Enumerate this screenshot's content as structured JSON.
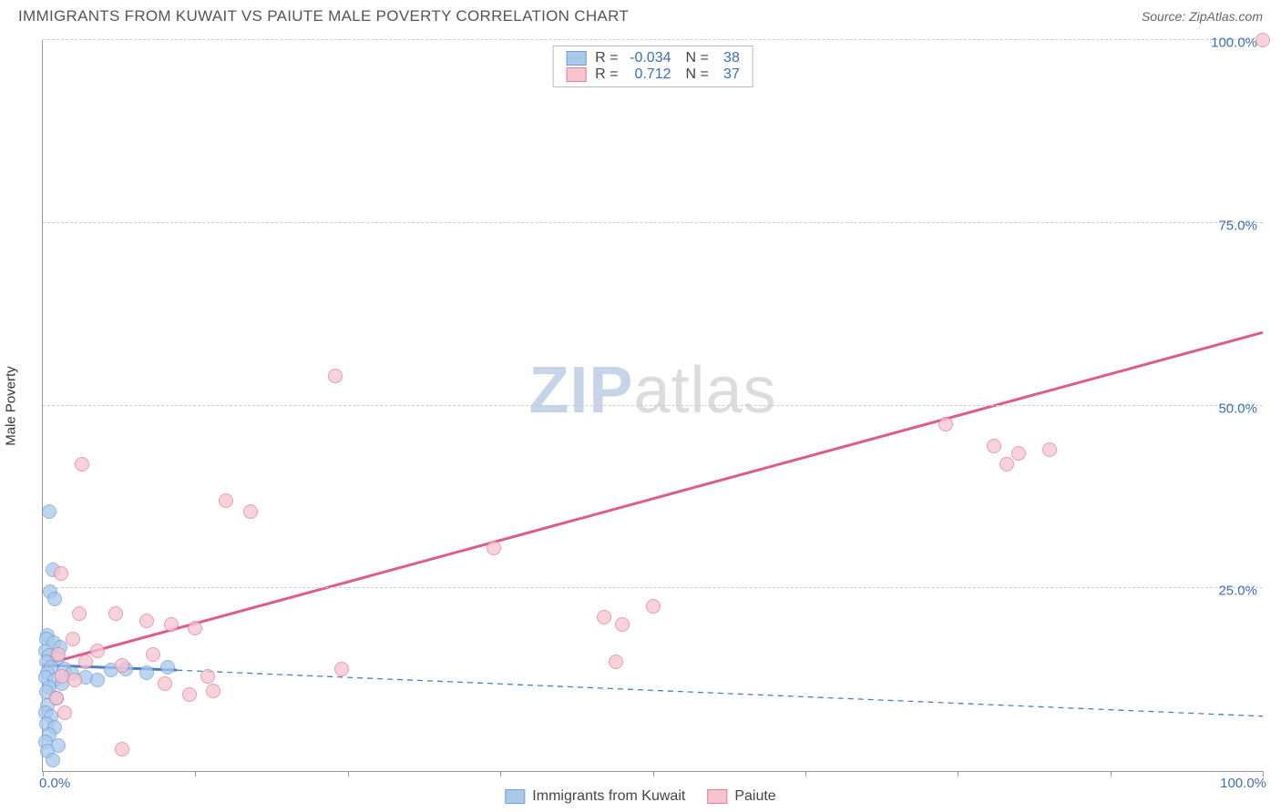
{
  "title": "IMMIGRANTS FROM KUWAIT VS PAIUTE MALE POVERTY CORRELATION CHART",
  "source_label": "Source:",
  "source_name": "ZipAtlas.com",
  "ylabel": "Male Poverty",
  "watermark_a": "ZIP",
  "watermark_b": "atlas",
  "colors": {
    "blue_fill": "#a9c8ea",
    "blue_stroke": "#6f9fd8",
    "pink_fill": "#f6c4cf",
    "pink_stroke": "#e67a9a",
    "blue_line": "#4a7fc5",
    "pink_line": "#e05a8a",
    "axis_text": "#3b6fb6",
    "grid": "#cccccc"
  },
  "chart": {
    "type": "scatter",
    "xlim": [
      0,
      100
    ],
    "ylim": [
      0,
      100
    ],
    "x_tick_positions": [
      0,
      12.5,
      25,
      37.5,
      50,
      62.5,
      75,
      87.5,
      100
    ],
    "y_grid": [
      {
        "v": 25,
        "label": "25.0%"
      },
      {
        "v": 50,
        "label": "50.0%"
      },
      {
        "v": 75,
        "label": "75.0%"
      },
      {
        "v": 100,
        "label": "100.0%"
      }
    ],
    "x_label_min": "0.0%",
    "x_label_max": "100.0%",
    "series": [
      {
        "name": "Immigrants from Kuwait",
        "color_key": "blue",
        "R": "-0.034",
        "N": "38",
        "trend": {
          "x1": 0,
          "y1": 14.5,
          "x2": 11,
          "y2": 13.8,
          "dashed_x2": 100,
          "dashed_y2": 7.5
        },
        "points": [
          {
            "x": 0.5,
            "y": 35.5
          },
          {
            "x": 0.8,
            "y": 27.5
          },
          {
            "x": 0.6,
            "y": 24.5
          },
          {
            "x": 1.0,
            "y": 23.5
          },
          {
            "x": 0.4,
            "y": 18.5
          },
          {
            "x": 0.3,
            "y": 18.0
          },
          {
            "x": 0.9,
            "y": 17.5
          },
          {
            "x": 1.4,
            "y": 17.0
          },
          {
            "x": 0.2,
            "y": 16.5
          },
          {
            "x": 0.5,
            "y": 15.8
          },
          {
            "x": 1.2,
            "y": 15.5
          },
          {
            "x": 0.3,
            "y": 15.0
          },
          {
            "x": 0.7,
            "y": 14.2
          },
          {
            "x": 1.8,
            "y": 14.0
          },
          {
            "x": 0.4,
            "y": 13.5
          },
          {
            "x": 2.4,
            "y": 13.3
          },
          {
            "x": 0.2,
            "y": 12.8
          },
          {
            "x": 1.0,
            "y": 12.4
          },
          {
            "x": 1.6,
            "y": 12.0
          },
          {
            "x": 3.5,
            "y": 12.8
          },
          {
            "x": 0.5,
            "y": 11.5
          },
          {
            "x": 4.5,
            "y": 12.5
          },
          {
            "x": 0.3,
            "y": 10.8
          },
          {
            "x": 5.6,
            "y": 13.8
          },
          {
            "x": 1.1,
            "y": 10.0
          },
          {
            "x": 6.8,
            "y": 14.0
          },
          {
            "x": 8.5,
            "y": 13.5
          },
          {
            "x": 10.2,
            "y": 14.2
          },
          {
            "x": 0.4,
            "y": 9.0
          },
          {
            "x": 0.2,
            "y": 8.0
          },
          {
            "x": 0.7,
            "y": 7.5
          },
          {
            "x": 0.3,
            "y": 6.5
          },
          {
            "x": 1.0,
            "y": 6.0
          },
          {
            "x": 0.5,
            "y": 5.0
          },
          {
            "x": 0.2,
            "y": 4.0
          },
          {
            "x": 1.3,
            "y": 3.5
          },
          {
            "x": 0.4,
            "y": 2.8
          },
          {
            "x": 0.8,
            "y": 1.5
          }
        ]
      },
      {
        "name": "Paiute",
        "color_key": "pink",
        "R": "0.712",
        "N": "37",
        "trend": {
          "x1": 0,
          "y1": 14.5,
          "x2": 100,
          "y2": 60.0
        },
        "points": [
          {
            "x": 100,
            "y": 100
          },
          {
            "x": 74,
            "y": 47.5
          },
          {
            "x": 78,
            "y": 44.5
          },
          {
            "x": 80,
            "y": 43.5
          },
          {
            "x": 82.5,
            "y": 44
          },
          {
            "x": 79,
            "y": 42
          },
          {
            "x": 24,
            "y": 54
          },
          {
            "x": 3.2,
            "y": 42
          },
          {
            "x": 15,
            "y": 37
          },
          {
            "x": 17,
            "y": 35.5
          },
          {
            "x": 37,
            "y": 30.5
          },
          {
            "x": 1.5,
            "y": 27
          },
          {
            "x": 3,
            "y": 21.5
          },
          {
            "x": 6,
            "y": 21.5
          },
          {
            "x": 8.5,
            "y": 20.5
          },
          {
            "x": 10.5,
            "y": 20
          },
          {
            "x": 12.5,
            "y": 19.5
          },
          {
            "x": 50,
            "y": 22.5
          },
          {
            "x": 46,
            "y": 21
          },
          {
            "x": 47.5,
            "y": 20
          },
          {
            "x": 47,
            "y": 15
          },
          {
            "x": 2.5,
            "y": 18
          },
          {
            "x": 4.5,
            "y": 16.5
          },
          {
            "x": 1.3,
            "y": 16
          },
          {
            "x": 3.5,
            "y": 15
          },
          {
            "x": 6.5,
            "y": 14.5
          },
          {
            "x": 9,
            "y": 16
          },
          {
            "x": 24.5,
            "y": 14
          },
          {
            "x": 1.6,
            "y": 13
          },
          {
            "x": 2.6,
            "y": 12.5
          },
          {
            "x": 13.5,
            "y": 13
          },
          {
            "x": 10,
            "y": 12
          },
          {
            "x": 14,
            "y": 11
          },
          {
            "x": 12,
            "y": 10.5
          },
          {
            "x": 6.5,
            "y": 3
          },
          {
            "x": 1.1,
            "y": 10
          },
          {
            "x": 1.8,
            "y": 8
          }
        ]
      }
    ]
  }
}
